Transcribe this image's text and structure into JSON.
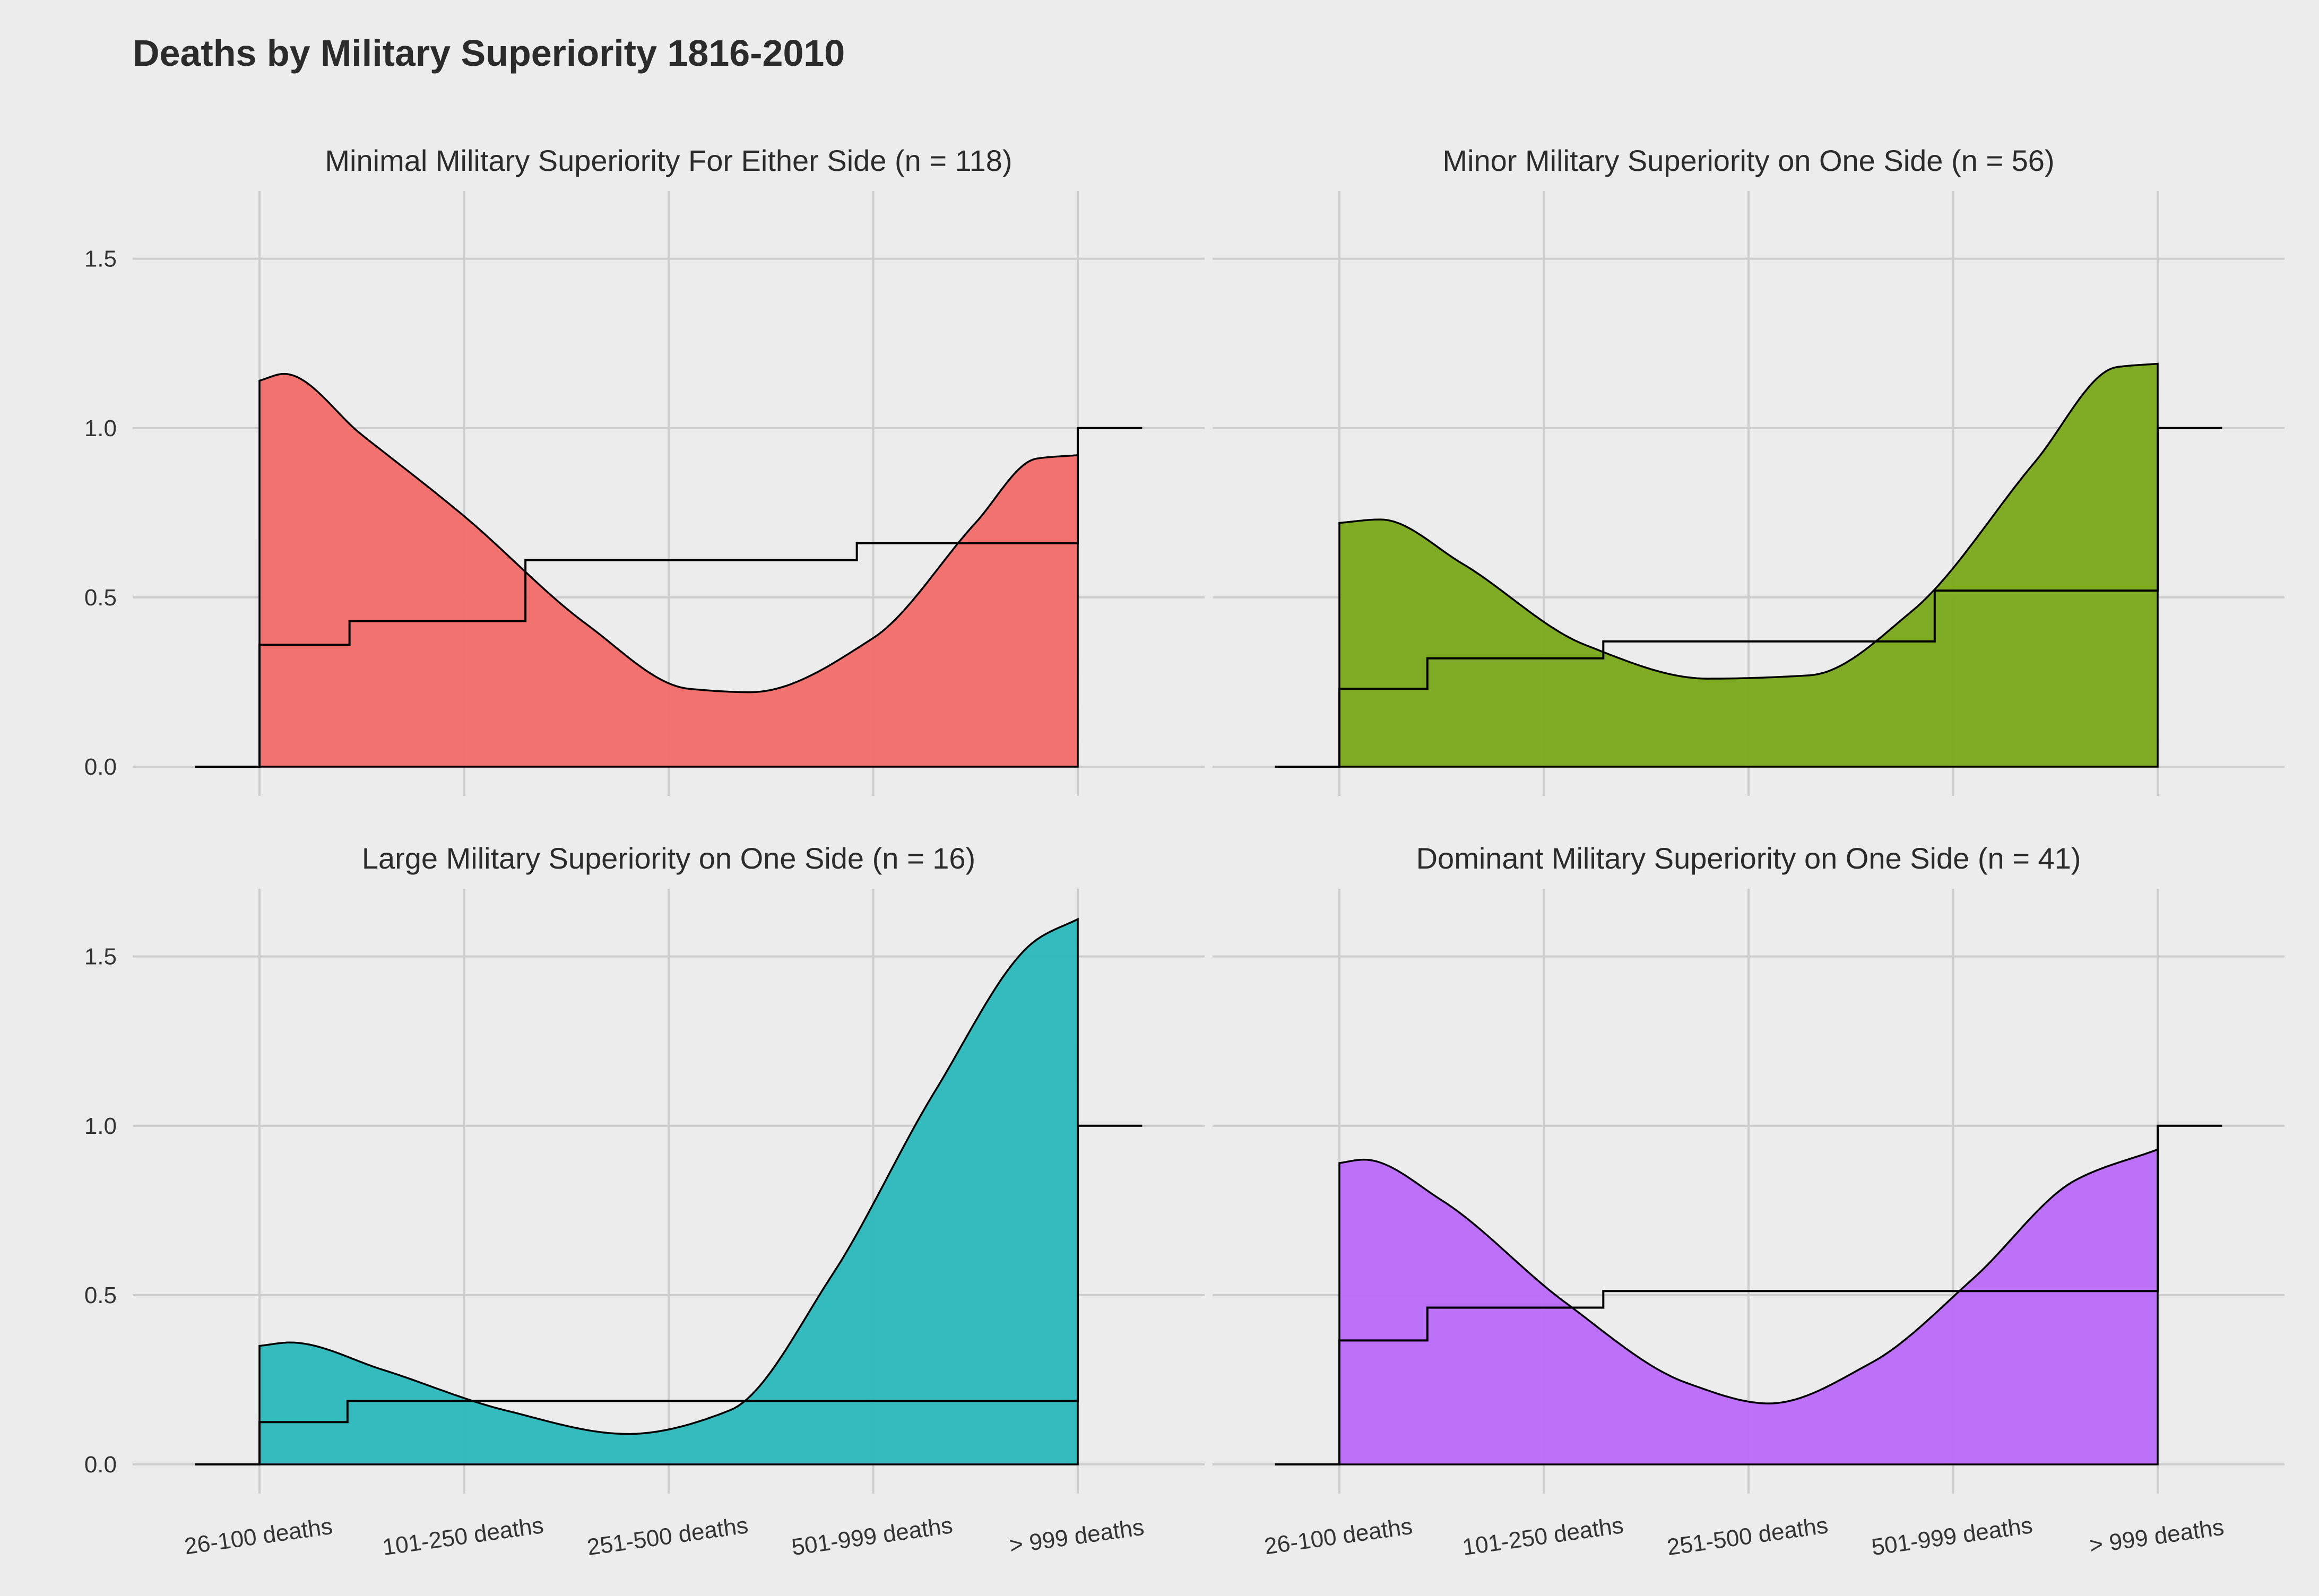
{
  "chart_data": {
    "type": "area",
    "title": "Deaths by Military Superiority 1816-2010",
    "xlabel": "",
    "ylabel": "",
    "categories": [
      "26-100 deaths",
      "101-250 deaths",
      "251-500 deaths",
      "501-999 deaths",
      "> 999 deaths"
    ],
    "ylim": [
      0,
      1.7
    ],
    "yticks": [
      "0.0",
      "0.5",
      "1.0",
      "1.5"
    ],
    "grid": true,
    "legend": "none",
    "panels": [
      {
        "strip": "Minimal Military Superiority For Either Side (n = 118)",
        "color": "#F26B68",
        "density": [
          [
            1,
            1.14
          ],
          [
            1.12,
            1.16
          ],
          [
            1.5,
            0.98
          ],
          [
            2,
            0.74
          ],
          [
            2.6,
            0.42
          ],
          [
            3.1,
            0.23
          ],
          [
            3.4,
            0.22
          ],
          [
            4,
            0.38
          ],
          [
            4.5,
            0.72
          ],
          [
            4.8,
            0.91
          ],
          [
            5,
            0.92
          ]
        ],
        "ecdf": [
          [
            1,
            0.36
          ],
          [
            1.44,
            0.43
          ],
          [
            2.3,
            0.61
          ],
          [
            3.92,
            0.66
          ],
          [
            5,
            1.0
          ]
        ]
      },
      {
        "strip": "Minor Military Superiority on One Side (n = 56)",
        "color": "#7AA81A",
        "density": [
          [
            1,
            0.72
          ],
          [
            1.2,
            0.73
          ],
          [
            1.6,
            0.6
          ],
          [
            2.2,
            0.36
          ],
          [
            2.8,
            0.26
          ],
          [
            3.3,
            0.27
          ],
          [
            3.8,
            0.46
          ],
          [
            4.4,
            0.9
          ],
          [
            4.8,
            1.18
          ],
          [
            5,
            1.19
          ]
        ],
        "ecdf": [
          [
            1,
            0.23
          ],
          [
            1.43,
            0.32
          ],
          [
            2.29,
            0.37
          ],
          [
            3.91,
            0.52
          ],
          [
            5,
            1.0
          ]
        ]
      },
      {
        "strip": "Large Military Superiority on One Side (n = 16)",
        "color": "#2AB8BA",
        "density": [
          [
            1,
            0.35
          ],
          [
            1.15,
            0.36
          ],
          [
            1.6,
            0.28
          ],
          [
            2.2,
            0.16
          ],
          [
            2.8,
            0.09
          ],
          [
            3.3,
            0.16
          ],
          [
            3.8,
            0.56
          ],
          [
            4.3,
            1.1
          ],
          [
            4.8,
            1.55
          ],
          [
            5,
            1.61
          ]
        ],
        "ecdf": [
          [
            1,
            0.125
          ],
          [
            1.43,
            0.1875
          ],
          [
            5,
            1.0
          ]
        ]
      },
      {
        "strip": "Dominant Military Superiority on One Side (n = 41)",
        "color": "#BB6AF9",
        "density": [
          [
            1,
            0.89
          ],
          [
            1.12,
            0.9
          ],
          [
            1.5,
            0.78
          ],
          [
            2.1,
            0.48
          ],
          [
            2.7,
            0.24
          ],
          [
            3.1,
            0.18
          ],
          [
            3.6,
            0.3
          ],
          [
            4.1,
            0.55
          ],
          [
            4.6,
            0.84
          ],
          [
            5,
            0.93
          ]
        ],
        "ecdf": [
          [
            1,
            0.366
          ],
          [
            1.43,
            0.463
          ],
          [
            2.29,
            0.512
          ],
          [
            5,
            1.0
          ]
        ]
      }
    ]
  }
}
